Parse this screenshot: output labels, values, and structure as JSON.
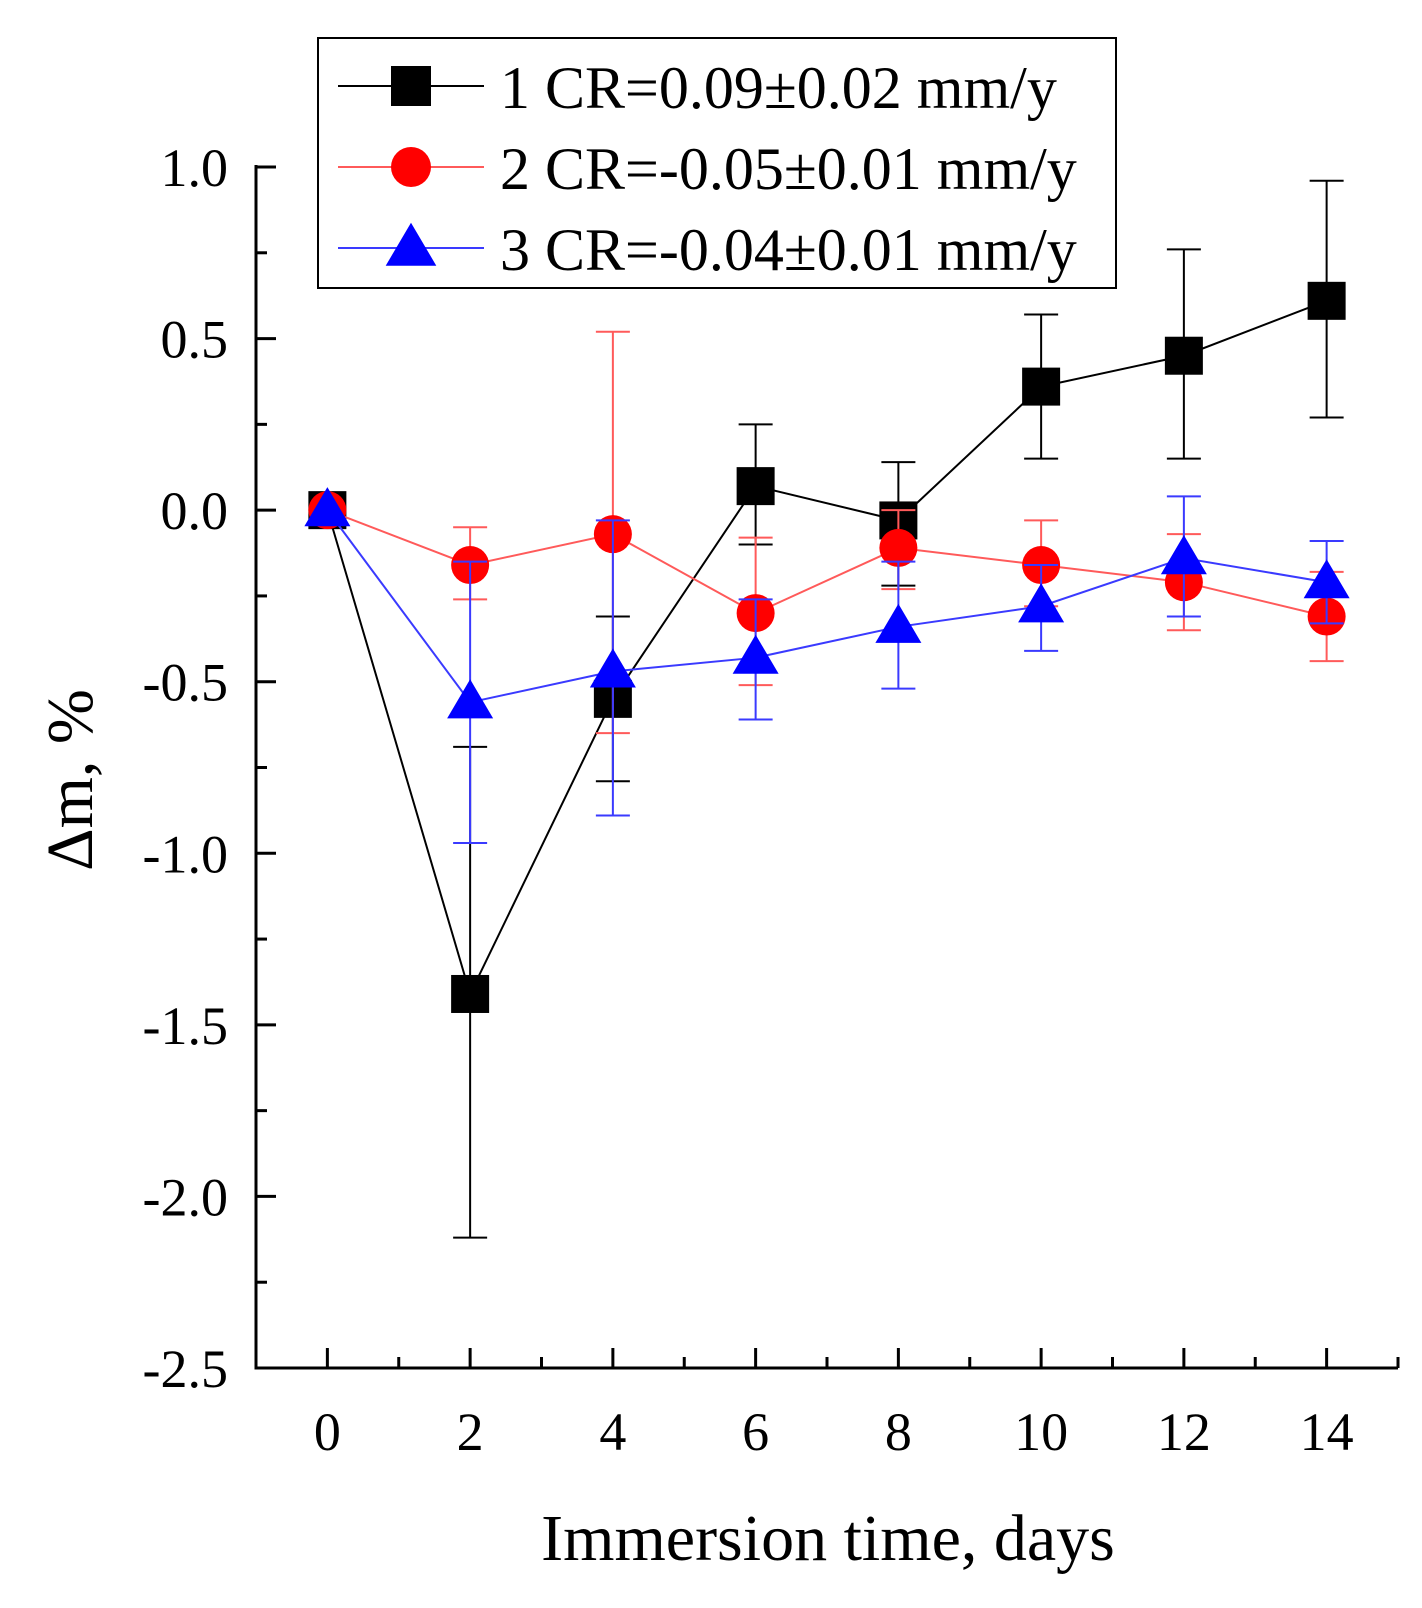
{
  "chart_data": {
    "type": "line",
    "title": "",
    "xlabel": "Immersion time, days",
    "ylabel": "Δm, %",
    "xlim": [
      -1,
      15
    ],
    "ylim": [
      -2.5,
      1.0
    ],
    "x_ticks": [
      "0",
      "2",
      "4",
      "6",
      "8",
      "10",
      "12",
      "14"
    ],
    "y_ticks": [
      "1.0",
      "0.5",
      "0.0",
      "-0.5",
      "-1.0",
      "-1.5",
      "-2.0",
      "-2.5"
    ],
    "x": [
      0,
      2,
      4,
      6,
      8,
      10,
      12,
      14
    ],
    "legend_position": "top-left",
    "series": [
      {
        "name": "1 CR=0.09±0.02 mm/y",
        "color": "#000000",
        "marker": "square",
        "values": [
          0.0,
          -1.41,
          -0.55,
          0.07,
          -0.03,
          0.36,
          0.45,
          0.61
        ],
        "err_low": [
          0.0,
          -2.12,
          -0.79,
          -0.1,
          -0.22,
          0.15,
          0.15,
          0.27
        ],
        "err_high": [
          0.0,
          -0.69,
          -0.31,
          0.25,
          0.14,
          0.57,
          0.76,
          0.96
        ]
      },
      {
        "name": "2 CR=-0.05±0.01 mm/y",
        "color": "#ff0000",
        "marker": "circle",
        "values": [
          0.0,
          -0.16,
          -0.07,
          -0.3,
          -0.11,
          -0.16,
          -0.21,
          -0.31
        ],
        "err_low": [
          0.0,
          -0.26,
          -0.65,
          -0.51,
          -0.23,
          -0.28,
          -0.35,
          -0.44
        ],
        "err_high": [
          0.0,
          -0.05,
          0.52,
          -0.08,
          0.0,
          -0.03,
          -0.07,
          -0.18
        ]
      },
      {
        "name": "3 CR=-0.04±0.01 mm/y",
        "color": "#0000ff",
        "marker": "triangle",
        "values": [
          0.0,
          -0.56,
          -0.47,
          -0.43,
          -0.34,
          -0.28,
          -0.14,
          -0.21
        ],
        "err_low": [
          0.0,
          -0.97,
          -0.89,
          -0.61,
          -0.52,
          -0.41,
          -0.31,
          -0.33
        ],
        "err_high": [
          0.0,
          -0.15,
          -0.03,
          -0.26,
          -0.15,
          -0.16,
          0.04,
          -0.09
        ]
      }
    ]
  }
}
